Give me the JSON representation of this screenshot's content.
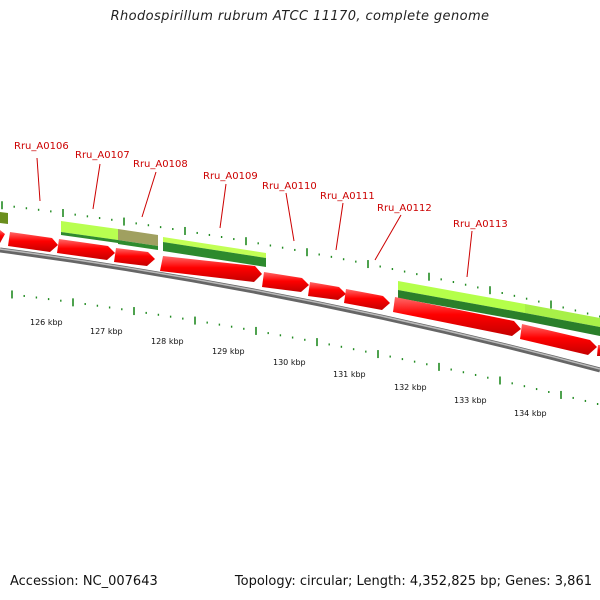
{
  "title": "Rhodospirillum rubrum ATCC 11170, complete genome",
  "footer": {
    "accession": "Accession: NC_007643",
    "summary": "Topology: circular; Length: 4,352,825 bp; Genes: 3,861"
  },
  "genes": [
    {
      "name": "Rru_A0106"
    },
    {
      "name": "Rru_A0107"
    },
    {
      "name": "Rru_A0108"
    },
    {
      "name": "Rru_A0109"
    },
    {
      "name": "Rru_A0110"
    },
    {
      "name": "Rru_A0111"
    },
    {
      "name": "Rru_A0112"
    },
    {
      "name": "Rru_A0113"
    }
  ],
  "scale_labels": [
    "126 kbp",
    "127 kbp",
    "128 kbp",
    "129 kbp",
    "130 kbp",
    "131 kbp",
    "132 kbp",
    "133 kbp",
    "134 kbp"
  ],
  "colors": {
    "cds_red": "#ff0000",
    "backbone": "#888888",
    "label_red": "#cc0000",
    "tick_green": "#228B22",
    "light_green": "#aaff44",
    "dark_green": "#2a8a2a"
  }
}
